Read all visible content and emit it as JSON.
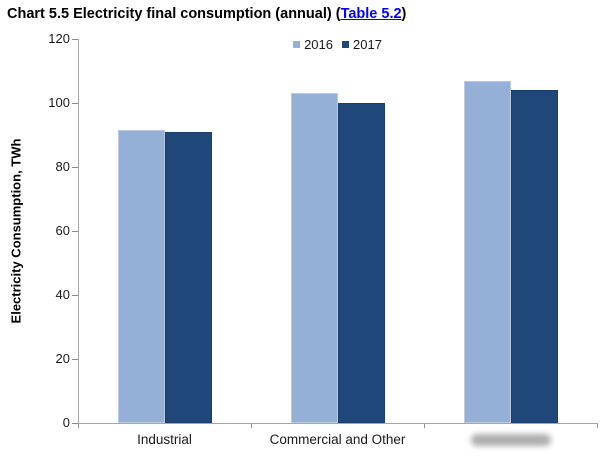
{
  "window": {
    "title_prefix": "Chart 5.5 Electricity final consumption (annual) (",
    "title_link": "Table 5.2",
    "title_suffix": ")"
  },
  "chart_data": {
    "type": "bar",
    "title": "Chart 5.5 Electricity final consumption (annual) (Table 5.2)",
    "ylabel": "Electricity Consumption, TWh",
    "xlabel": "",
    "ylim": [
      0,
      120
    ],
    "yticks": [
      0,
      20,
      40,
      60,
      80,
      100,
      120
    ],
    "grid": false,
    "legend_position": "top-center",
    "legend_entries": [
      "2016",
      "2017"
    ],
    "categories": [
      "Industrial",
      "Commercial and Other",
      ""
    ],
    "redacted_category_index": 2,
    "series": [
      {
        "name": "2016",
        "color": "#95B0D7",
        "border_color": "#bcc9de",
        "values": [
          91.5,
          103,
          107
        ]
      },
      {
        "name": "2017",
        "color": "#1F4779",
        "border_color": "#1b3e6a",
        "values": [
          91,
          100,
          104
        ]
      }
    ]
  }
}
